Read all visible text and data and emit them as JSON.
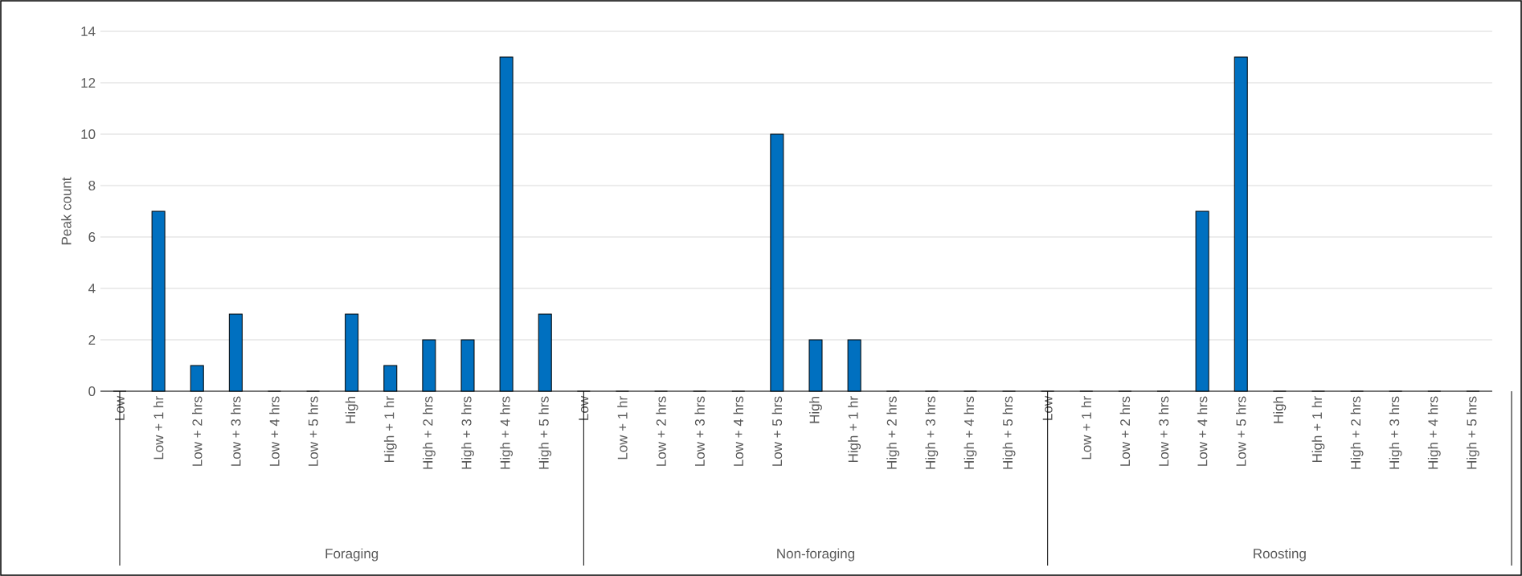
{
  "chart_data": {
    "type": "bar",
    "ylabel": "Peak count",
    "categories": [
      "Low",
      "Low + 1 hr",
      "Low + 2 hrs",
      "Low + 3 hrs",
      "Low + 4 hrs",
      "Low + 5 hrs",
      "High",
      "High + 1 hr",
      "High + 2 hrs",
      "High + 3 hrs",
      "High + 4 hrs",
      "High + 5 hrs",
      "Low",
      "Low + 1 hr",
      "Low + 2 hrs",
      "Low + 3 hrs",
      "Low + 4 hrs",
      "Low + 5 hrs",
      "High",
      "High + 1 hr",
      "High + 2 hrs",
      "High + 3 hrs",
      "High + 4 hrs",
      "High + 5 hrs",
      "Low",
      "Low + 1 hr",
      "Low + 2 hrs",
      "Low + 3 hrs",
      "Low + 4 hrs",
      "Low + 5 hrs",
      "High",
      "High + 1 hr",
      "High + 2 hrs",
      "High + 3 hrs",
      "High + 4 hrs",
      "High + 5 hrs"
    ],
    "values": [
      0,
      7,
      1,
      3,
      0,
      0,
      3,
      1,
      2,
      2,
      13,
      3,
      0,
      0,
      0,
      0,
      0,
      10,
      2,
      2,
      0,
      0,
      0,
      0,
      0,
      0,
      0,
      0,
      7,
      13,
      0,
      0,
      0,
      0,
      0,
      0
    ],
    "color": "#0070c0",
    "ylim": [
      0,
      14
    ],
    "yticks": [
      0,
      2,
      4,
      6,
      8,
      10,
      12,
      14
    ],
    "grid": "y",
    "annotations": [
      "Foraging",
      "Non-foraging",
      "Roosting"
    ]
  }
}
